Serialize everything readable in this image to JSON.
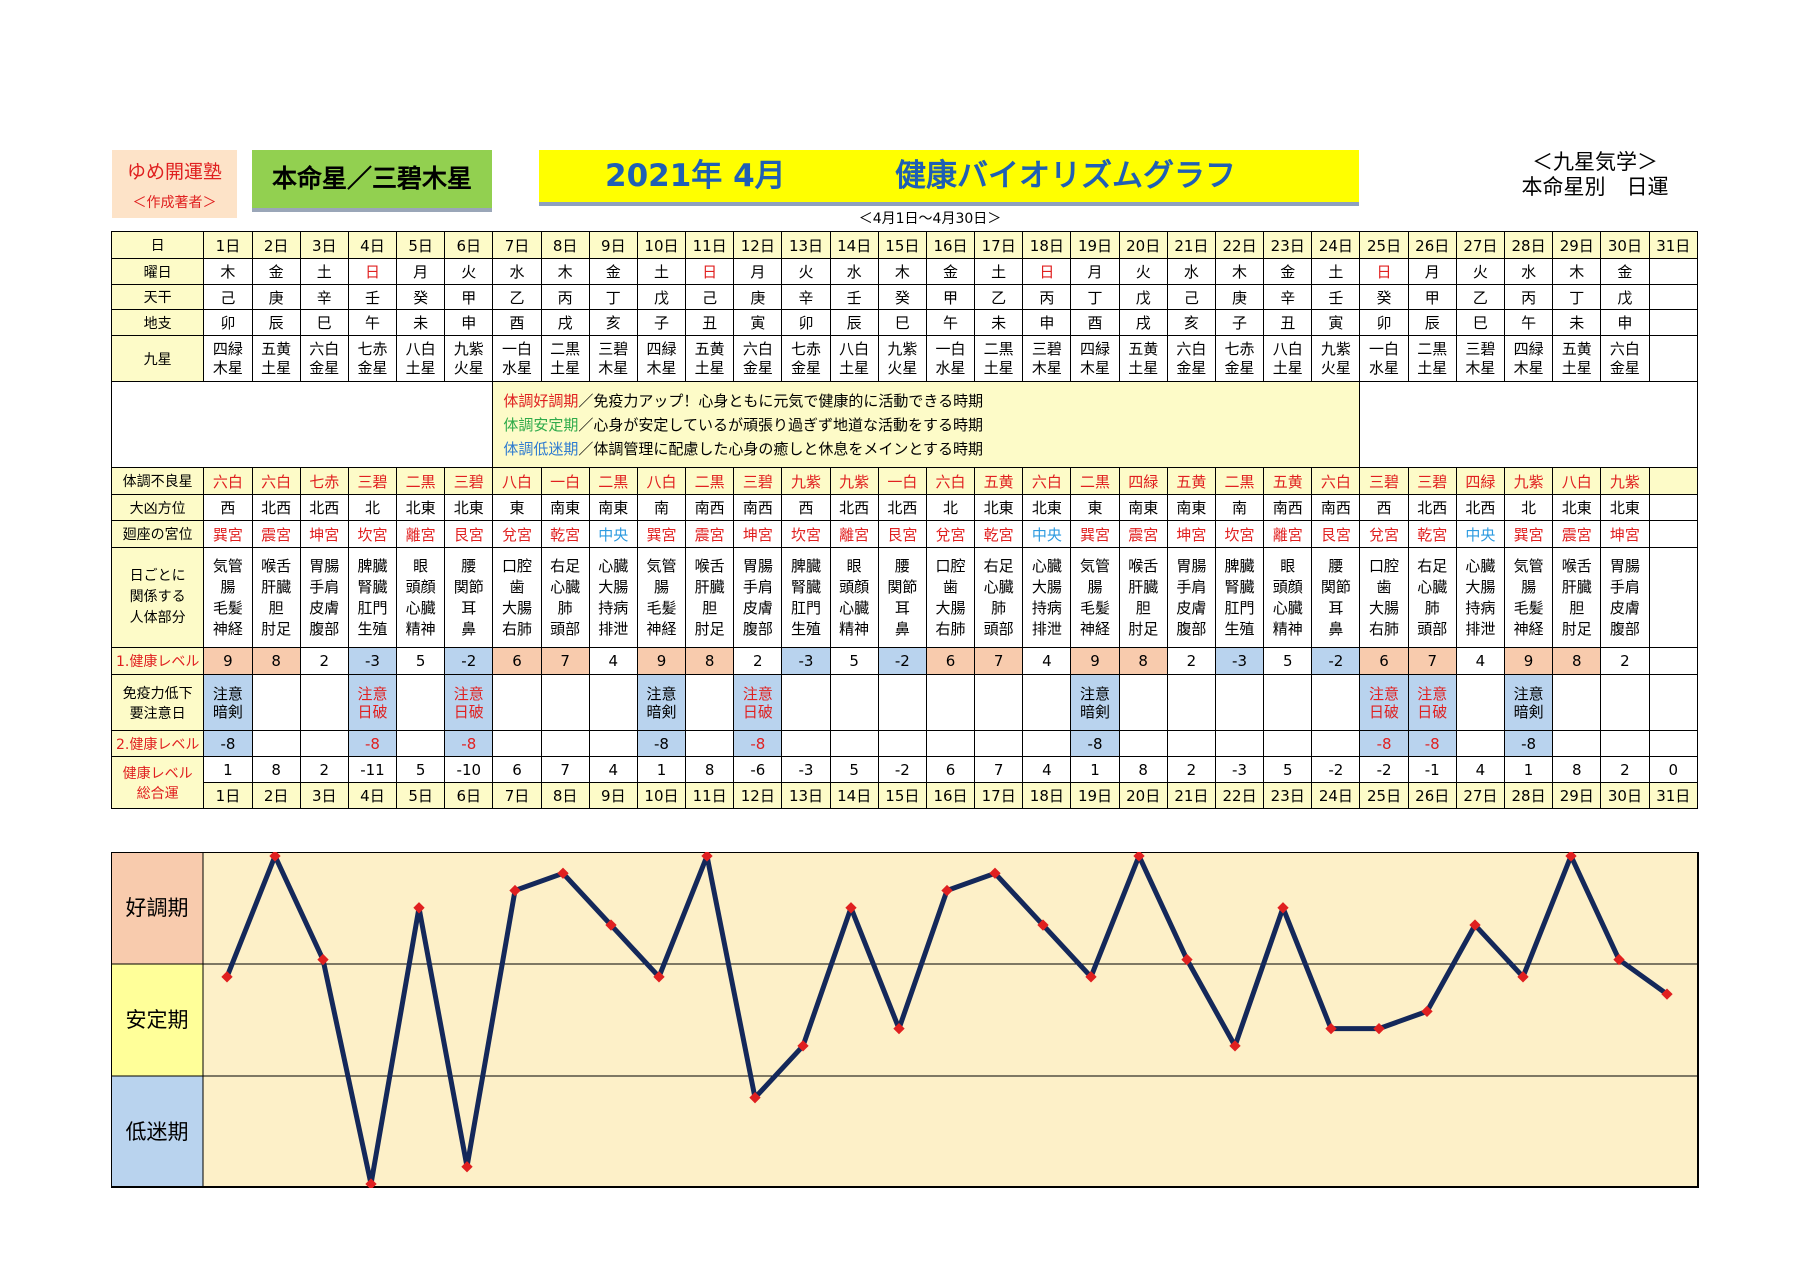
{
  "header": {
    "author_name": "ゆめ開運塾",
    "author_role": "＜作成著者＞",
    "honmeisei": "本命星／三碧木星",
    "title_date": "2021年 4月",
    "title_main": "健康バイオリズムグラフ",
    "date_range": "＜4月1日～4月30日＞",
    "kyusei_line1": "＜九星気学＞",
    "kyusei_line2": "本命星別　日運"
  },
  "row_labels": {
    "day": "日",
    "weekday": "曜日",
    "tenkan": "天干",
    "chishi": "地支",
    "kyusei": "九星",
    "bad_star": "体調不良星",
    "daikyo": "大凶方位",
    "kaiza": "廻座の宮位",
    "body_l1": "日ごとに",
    "body_l2": "関係する",
    "body_l3": "人体部分",
    "level1": "1.健康レベル",
    "warn_l1": "免疫力低下",
    "warn_l2": "要注意日",
    "level2": "2.健康レベル",
    "total_l1": "健康レベル",
    "total_l2": "総合運"
  },
  "notes": [
    {
      "term": "体調好調期",
      "desc": "／免疫力アップ！心身ともに元気で健康的に活動できる時期",
      "color": "#e02020"
    },
    {
      "term": "体調安定期",
      "desc": "／心身が安定しているが頑張り過ぎず地道な活動をする時期",
      "color": "#2eaa4a"
    },
    {
      "term": "体調低迷期",
      "desc": "／体調管理に配慮した心身の癒しと休息をメインとする時期",
      "color": "#2e7bd0"
    }
  ],
  "days": [
    {
      "d": "1日",
      "wd": "木",
      "sun": false,
      "tk": "己",
      "cs": "卯",
      "ks1": "四緑",
      "ks2": "木星",
      "bad": "六白",
      "dk": "西",
      "kz": "巽宮",
      "b1": "気管",
      "b2": "腸",
      "b3": "毛髪",
      "b4": "神経",
      "lv1": "9",
      "w1": "注意",
      "w2": "暗剣",
      "lv2": "-8",
      "tot": "1"
    },
    {
      "d": "2日",
      "wd": "金",
      "sun": false,
      "tk": "庚",
      "cs": "辰",
      "ks1": "五黄",
      "ks2": "土星",
      "bad": "六白",
      "dk": "北西",
      "kz": "震宮",
      "b1": "喉舌",
      "b2": "肝臓",
      "b3": "胆",
      "b4": "肘足",
      "lv1": "8",
      "w1": "",
      "w2": "",
      "lv2": "",
      "tot": "8"
    },
    {
      "d": "3日",
      "wd": "土",
      "sun": false,
      "tk": "辛",
      "cs": "巳",
      "ks1": "六白",
      "ks2": "金星",
      "bad": "七赤",
      "dk": "北西",
      "kz": "坤宮",
      "b1": "胃腸",
      "b2": "手肩",
      "b3": "皮膚",
      "b4": "腹部",
      "lv1": "2",
      "w1": "",
      "w2": "",
      "lv2": "",
      "tot": "2"
    },
    {
      "d": "4日",
      "wd": "日",
      "sun": true,
      "tk": "壬",
      "cs": "午",
      "ks1": "七赤",
      "ks2": "金星",
      "bad": "三碧",
      "dk": "北",
      "kz": "坎宮",
      "b1": "脾臓",
      "b2": "腎臓",
      "b3": "肛門",
      "b4": "生殖",
      "lv1": "-3",
      "w1": "注意",
      "w2": "日破",
      "lv2": "-8",
      "tot": "-11"
    },
    {
      "d": "5日",
      "wd": "月",
      "sun": false,
      "tk": "癸",
      "cs": "未",
      "ks1": "八白",
      "ks2": "土星",
      "bad": "二黒",
      "dk": "北東",
      "kz": "離宮",
      "b1": "眼",
      "b2": "頭顔",
      "b3": "心臓",
      "b4": "精神",
      "lv1": "5",
      "w1": "",
      "w2": "",
      "lv2": "",
      "tot": "5"
    },
    {
      "d": "6日",
      "wd": "火",
      "sun": false,
      "tk": "甲",
      "cs": "申",
      "ks1": "九紫",
      "ks2": "火星",
      "bad": "三碧",
      "dk": "北東",
      "kz": "艮宮",
      "b1": "腰",
      "b2": "関節",
      "b3": "耳",
      "b4": "鼻",
      "lv1": "-2",
      "w1": "注意",
      "w2": "日破",
      "lv2": "-8",
      "tot": "-10"
    },
    {
      "d": "7日",
      "wd": "水",
      "sun": false,
      "tk": "乙",
      "cs": "酉",
      "ks1": "一白",
      "ks2": "水星",
      "bad": "八白",
      "dk": "東",
      "kz": "兌宮",
      "b1": "口腔",
      "b2": "歯",
      "b3": "大腸",
      "b4": "右肺",
      "lv1": "6",
      "w1": "",
      "w2": "",
      "lv2": "",
      "tot": "6"
    },
    {
      "d": "8日",
      "wd": "木",
      "sun": false,
      "tk": "丙",
      "cs": "戌",
      "ks1": "二黒",
      "ks2": "土星",
      "bad": "一白",
      "dk": "南東",
      "kz": "乾宮",
      "b1": "右足",
      "b2": "心臓",
      "b3": "肺",
      "b4": "頭部",
      "lv1": "7",
      "w1": "",
      "w2": "",
      "lv2": "",
      "tot": "7"
    },
    {
      "d": "9日",
      "wd": "金",
      "sun": false,
      "tk": "丁",
      "cs": "亥",
      "ks1": "三碧",
      "ks2": "木星",
      "bad": "二黒",
      "dk": "南東",
      "kz": "中央",
      "b1": "心臓",
      "b2": "大腸",
      "b3": "持病",
      "b4": "排泄",
      "lv1": "4",
      "w1": "",
      "w2": "",
      "lv2": "",
      "tot": "4"
    },
    {
      "d": "10日",
      "wd": "土",
      "sun": false,
      "tk": "戊",
      "cs": "子",
      "ks1": "四緑",
      "ks2": "木星",
      "bad": "八白",
      "dk": "南",
      "kz": "巽宮",
      "b1": "気管",
      "b2": "腸",
      "b3": "毛髪",
      "b4": "神経",
      "lv1": "9",
      "w1": "注意",
      "w2": "暗剣",
      "lv2": "-8",
      "tot": "1"
    },
    {
      "d": "11日",
      "wd": "日",
      "sun": true,
      "tk": "己",
      "cs": "丑",
      "ks1": "五黄",
      "ks2": "土星",
      "bad": "二黒",
      "dk": "南西",
      "kz": "震宮",
      "b1": "喉舌",
      "b2": "肝臓",
      "b3": "胆",
      "b4": "肘足",
      "lv1": "8",
      "w1": "",
      "w2": "",
      "lv2": "",
      "tot": "8"
    },
    {
      "d": "12日",
      "wd": "月",
      "sun": false,
      "tk": "庚",
      "cs": "寅",
      "ks1": "六白",
      "ks2": "金星",
      "bad": "三碧",
      "dk": "南西",
      "kz": "坤宮",
      "b1": "胃腸",
      "b2": "手肩",
      "b3": "皮膚",
      "b4": "腹部",
      "lv1": "2",
      "w1": "注意",
      "w2": "日破",
      "lv2": "-8",
      "tot": "-6"
    },
    {
      "d": "13日",
      "wd": "火",
      "sun": false,
      "tk": "辛",
      "cs": "卯",
      "ks1": "七赤",
      "ks2": "金星",
      "bad": "九紫",
      "dk": "西",
      "kz": "坎宮",
      "b1": "脾臓",
      "b2": "腎臓",
      "b3": "肛門",
      "b4": "生殖",
      "lv1": "-3",
      "w1": "",
      "w2": "",
      "lv2": "",
      "tot": "-3"
    },
    {
      "d": "14日",
      "wd": "水",
      "sun": false,
      "tk": "壬",
      "cs": "辰",
      "ks1": "八白",
      "ks2": "土星",
      "bad": "九紫",
      "dk": "北西",
      "kz": "離宮",
      "b1": "眼",
      "b2": "頭顔",
      "b3": "心臓",
      "b4": "精神",
      "lv1": "5",
      "w1": "",
      "w2": "",
      "lv2": "",
      "tot": "5"
    },
    {
      "d": "15日",
      "wd": "木",
      "sun": false,
      "tk": "癸",
      "cs": "巳",
      "ks1": "九紫",
      "ks2": "火星",
      "bad": "一白",
      "dk": "北西",
      "kz": "艮宮",
      "b1": "腰",
      "b2": "関節",
      "b3": "耳",
      "b4": "鼻",
      "lv1": "-2",
      "w1": "",
      "w2": "",
      "lv2": "",
      "tot": "-2"
    },
    {
      "d": "16日",
      "wd": "金",
      "sun": false,
      "tk": "甲",
      "cs": "午",
      "ks1": "一白",
      "ks2": "水星",
      "bad": "六白",
      "dk": "北",
      "kz": "兌宮",
      "b1": "口腔",
      "b2": "歯",
      "b3": "大腸",
      "b4": "右肺",
      "lv1": "6",
      "w1": "",
      "w2": "",
      "lv2": "",
      "tot": "6"
    },
    {
      "d": "17日",
      "wd": "土",
      "sun": false,
      "tk": "乙",
      "cs": "未",
      "ks1": "二黒",
      "ks2": "土星",
      "bad": "五黄",
      "dk": "北東",
      "kz": "乾宮",
      "b1": "右足",
      "b2": "心臓",
      "b3": "肺",
      "b4": "頭部",
      "lv1": "7",
      "w1": "",
      "w2": "",
      "lv2": "",
      "tot": "7"
    },
    {
      "d": "18日",
      "wd": "日",
      "sun": true,
      "tk": "丙",
      "cs": "申",
      "ks1": "三碧",
      "ks2": "木星",
      "bad": "六白",
      "dk": "北東",
      "kz": "中央",
      "b1": "心臓",
      "b2": "大腸",
      "b3": "持病",
      "b4": "排泄",
      "lv1": "4",
      "w1": "",
      "w2": "",
      "lv2": "",
      "tot": "4"
    },
    {
      "d": "19日",
      "wd": "月",
      "sun": false,
      "tk": "丁",
      "cs": "酉",
      "ks1": "四緑",
      "ks2": "木星",
      "bad": "二黒",
      "dk": "東",
      "kz": "巽宮",
      "b1": "気管",
      "b2": "腸",
      "b3": "毛髪",
      "b4": "神経",
      "lv1": "9",
      "w1": "注意",
      "w2": "暗剣",
      "lv2": "-8",
      "tot": "1"
    },
    {
      "d": "20日",
      "wd": "火",
      "sun": false,
      "tk": "戊",
      "cs": "戌",
      "ks1": "五黄",
      "ks2": "土星",
      "bad": "四緑",
      "dk": "南東",
      "kz": "震宮",
      "b1": "喉舌",
      "b2": "肝臓",
      "b3": "胆",
      "b4": "肘足",
      "lv1": "8",
      "w1": "",
      "w2": "",
      "lv2": "",
      "tot": "8"
    },
    {
      "d": "21日",
      "wd": "水",
      "sun": false,
      "tk": "己",
      "cs": "亥",
      "ks1": "六白",
      "ks2": "金星",
      "bad": "五黄",
      "dk": "南東",
      "kz": "坤宮",
      "b1": "胃腸",
      "b2": "手肩",
      "b3": "皮膚",
      "b4": "腹部",
      "lv1": "2",
      "w1": "",
      "w2": "",
      "lv2": "",
      "tot": "2"
    },
    {
      "d": "22日",
      "wd": "木",
      "sun": false,
      "tk": "庚",
      "cs": "子",
      "ks1": "七赤",
      "ks2": "金星",
      "bad": "二黒",
      "dk": "南",
      "kz": "坎宮",
      "b1": "脾臓",
      "b2": "腎臓",
      "b3": "肛門",
      "b4": "生殖",
      "lv1": "-3",
      "w1": "",
      "w2": "",
      "lv2": "",
      "tot": "-3"
    },
    {
      "d": "23日",
      "wd": "金",
      "sun": false,
      "tk": "辛",
      "cs": "丑",
      "ks1": "八白",
      "ks2": "土星",
      "bad": "五黄",
      "dk": "南西",
      "kz": "離宮",
      "b1": "眼",
      "b2": "頭顔",
      "b3": "心臓",
      "b4": "精神",
      "lv1": "5",
      "w1": "",
      "w2": "",
      "lv2": "",
      "tot": "5"
    },
    {
      "d": "24日",
      "wd": "土",
      "sun": false,
      "tk": "壬",
      "cs": "寅",
      "ks1": "九紫",
      "ks2": "火星",
      "bad": "六白",
      "dk": "南西",
      "kz": "艮宮",
      "b1": "腰",
      "b2": "関節",
      "b3": "耳",
      "b4": "鼻",
      "lv1": "-2",
      "w1": "",
      "w2": "",
      "lv2": "",
      "tot": "-2"
    },
    {
      "d": "25日",
      "wd": "日",
      "sun": true,
      "tk": "癸",
      "cs": "卯",
      "ks1": "一白",
      "ks2": "水星",
      "bad": "三碧",
      "dk": "西",
      "kz": "兌宮",
      "b1": "口腔",
      "b2": "歯",
      "b3": "大腸",
      "b4": "右肺",
      "lv1": "6",
      "w1": "注意",
      "w2": "日破",
      "lv2": "-8",
      "tot": "-2"
    },
    {
      "d": "26日",
      "wd": "月",
      "sun": false,
      "tk": "甲",
      "cs": "辰",
      "ks1": "二黒",
      "ks2": "土星",
      "bad": "三碧",
      "dk": "北西",
      "kz": "乾宮",
      "b1": "右足",
      "b2": "心臓",
      "b3": "肺",
      "b4": "頭部",
      "lv1": "7",
      "w1": "注意",
      "w2": "日破",
      "lv2": "-8",
      "tot": "-1"
    },
    {
      "d": "27日",
      "wd": "火",
      "sun": false,
      "tk": "乙",
      "cs": "巳",
      "ks1": "三碧",
      "ks2": "木星",
      "bad": "四緑",
      "dk": "北西",
      "kz": "中央",
      "b1": "心臓",
      "b2": "大腸",
      "b3": "持病",
      "b4": "排泄",
      "lv1": "4",
      "w1": "",
      "w2": "",
      "lv2": "",
      "tot": "4"
    },
    {
      "d": "28日",
      "wd": "水",
      "sun": false,
      "tk": "丙",
      "cs": "午",
      "ks1": "四緑",
      "ks2": "木星",
      "bad": "九紫",
      "dk": "北",
      "kz": "巽宮",
      "b1": "気管",
      "b2": "腸",
      "b3": "毛髪",
      "b4": "神経",
      "lv1": "9",
      "w1": "注意",
      "w2": "暗剣",
      "lv2": "-8",
      "tot": "1"
    },
    {
      "d": "29日",
      "wd": "木",
      "sun": false,
      "tk": "丁",
      "cs": "未",
      "ks1": "五黄",
      "ks2": "土星",
      "bad": "八白",
      "dk": "北東",
      "kz": "震宮",
      "b1": "喉舌",
      "b2": "肝臓",
      "b3": "胆",
      "b4": "肘足",
      "lv1": "8",
      "w1": "",
      "w2": "",
      "lv2": "",
      "tot": "8"
    },
    {
      "d": "30日",
      "wd": "金",
      "sun": false,
      "tk": "戊",
      "cs": "申",
      "ks1": "六白",
      "ks2": "金星",
      "bad": "九紫",
      "dk": "北東",
      "kz": "坤宮",
      "b1": "胃腸",
      "b2": "手肩",
      "b3": "皮膚",
      "b4": "腹部",
      "lv1": "2",
      "w1": "",
      "w2": "",
      "lv2": "",
      "tot": "2"
    },
    {
      "d": "31日",
      "wd": "",
      "sun": false,
      "tk": "",
      "cs": "",
      "ks1": "",
      "ks2": "",
      "bad": "",
      "dk": "",
      "kz": "",
      "b1": "",
      "b2": "",
      "b3": "",
      "b4": "",
      "lv1": "",
      "w1": "",
      "w2": "",
      "lv2": "",
      "tot": "0"
    }
  ],
  "colors": {
    "line": "#14285a",
    "marker": "#e02020",
    "good_band": "#f8cbad",
    "stable_band": "#ffff99",
    "low_band": "#b9d3ee",
    "plot_bg": "#fdf0c8"
  },
  "chart_data": {
    "type": "line",
    "x": [
      "1日",
      "2日",
      "3日",
      "4日",
      "5日",
      "6日",
      "7日",
      "8日",
      "9日",
      "10日",
      "11日",
      "12日",
      "13日",
      "14日",
      "15日",
      "16日",
      "17日",
      "18日",
      "19日",
      "20日",
      "21日",
      "22日",
      "23日",
      "24日",
      "25日",
      "26日",
      "27日",
      "28日",
      "29日",
      "30日",
      "31日"
    ],
    "series": [
      {
        "values": [
          1,
          8,
          2,
          -11,
          5,
          -10,
          6,
          7,
          4,
          1,
          8,
          -6,
          -3,
          5,
          -2,
          6,
          7,
          4,
          1,
          8,
          2,
          -3,
          5,
          -2,
          -2,
          -1,
          4,
          1,
          8,
          2,
          0
        ]
      }
    ],
    "bands": [
      "好調期",
      "安定期",
      "低迷期"
    ],
    "ylim": [
      -11,
      8
    ],
    "grid": false
  }
}
